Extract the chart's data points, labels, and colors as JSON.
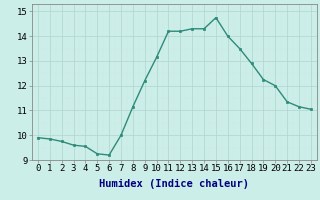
{
  "x": [
    0,
    1,
    2,
    3,
    4,
    5,
    6,
    7,
    8,
    9,
    10,
    11,
    12,
    13,
    14,
    15,
    16,
    17,
    18,
    19,
    20,
    21,
    22,
    23
  ],
  "y": [
    9.9,
    9.85,
    9.75,
    9.6,
    9.55,
    9.25,
    9.2,
    10.0,
    11.15,
    12.2,
    13.15,
    14.2,
    14.2,
    14.3,
    14.3,
    14.75,
    14.0,
    13.5,
    12.9,
    12.25,
    12.0,
    11.35,
    11.15,
    11.05
  ],
  "line_color": "#2e8b7a",
  "marker": "s",
  "markersize": 2.0,
  "linewidth": 1.0,
  "bg_color": "#cceee8",
  "grid_color_major": "#b0d4ce",
  "grid_color_minor": "#c8e8e4",
  "xlabel": "Humidex (Indice chaleur)",
  "xlabel_fontsize": 7.5,
  "tick_fontsize": 6.5,
  "xlim": [
    -0.5,
    23.5
  ],
  "ylim": [
    9.0,
    15.3
  ],
  "yticks": [
    9,
    10,
    11,
    12,
    13,
    14,
    15
  ],
  "xticks": [
    0,
    1,
    2,
    3,
    4,
    5,
    6,
    7,
    8,
    9,
    10,
    11,
    12,
    13,
    14,
    15,
    16,
    17,
    18,
    19,
    20,
    21,
    22,
    23
  ]
}
